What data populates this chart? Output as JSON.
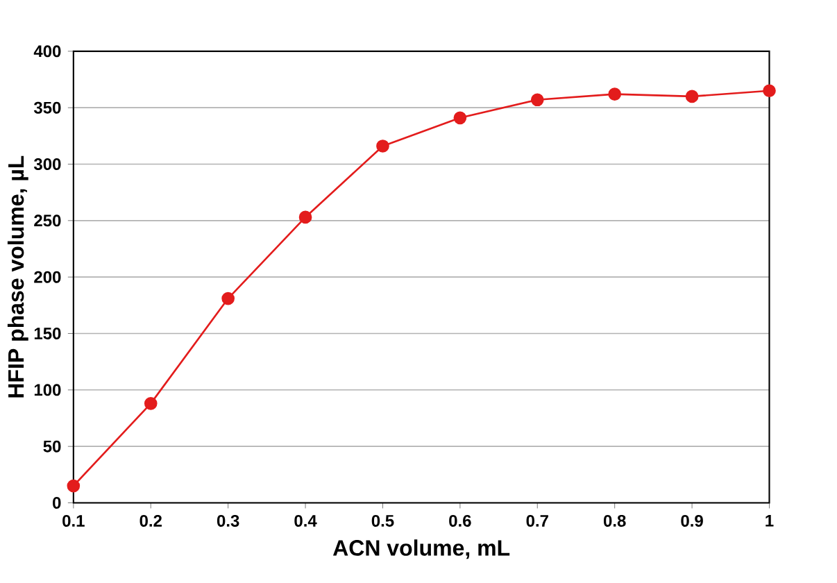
{
  "chart_data": {
    "type": "line",
    "xlabel": "ACN volume, mL",
    "ylabel": "HFIP phase volume, µL",
    "x": [
      0.1,
      0.2,
      0.3,
      0.4,
      0.5,
      0.6,
      0.7,
      0.8,
      0.9,
      1
    ],
    "series": [
      {
        "color": "#e31c1c",
        "values": [
          15,
          88,
          181,
          253,
          316,
          341,
          357,
          362,
          360,
          365
        ]
      }
    ],
    "xlim": [
      0.1,
      1
    ],
    "ylim": [
      0,
      400
    ],
    "xticks": [
      0.1,
      0.2,
      0.3,
      0.4,
      0.5,
      0.6,
      0.7,
      0.8,
      0.9,
      1
    ],
    "yticks": [
      0,
      50,
      100,
      150,
      200,
      250,
      300,
      350,
      400
    ],
    "grid": "y",
    "marker": "circle",
    "line_style": "solid"
  }
}
